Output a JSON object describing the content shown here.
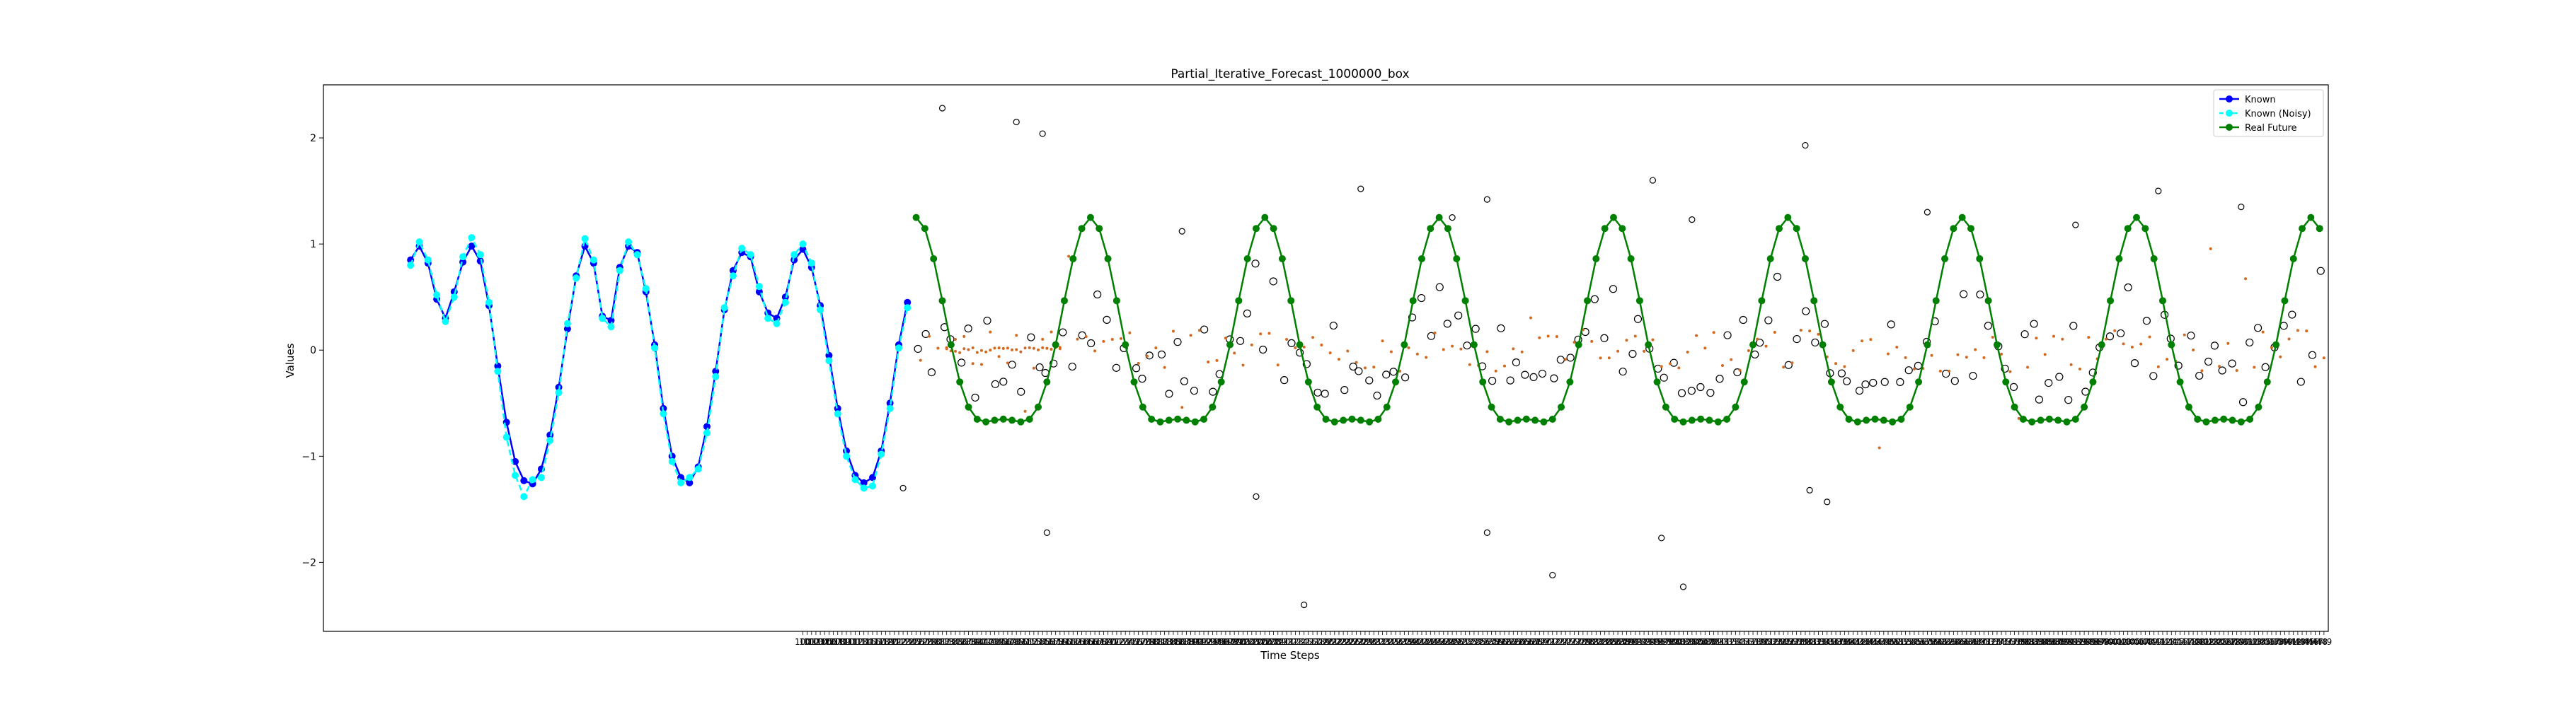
{
  "chart_data": {
    "type": "line",
    "title": "Partial_Iterative_Forecast_1000000_box",
    "xlabel": "Time Steps",
    "ylabel": "Values",
    "xlim": [
      -10,
      450
    ],
    "ylim": [
      -2.65,
      2.5
    ],
    "yticks": [
      -2,
      -1,
      0,
      1,
      2
    ],
    "ytick_labels": [
      "−2",
      "−1",
      "0",
      "1",
      "2"
    ],
    "x_tick_start": 100,
    "x_tick_end": 449,
    "legend": {
      "location": "upper right",
      "entries": [
        {
          "label": "Known",
          "color": "#0000ff",
          "marker": "circle",
          "line": "solid"
        },
        {
          "label": "Known (Noisy)",
          "color": "#00ffff",
          "marker": "circle",
          "line": "dashed"
        },
        {
          "label": "Real Future",
          "color": "#008000",
          "marker": "circle",
          "line": "solid"
        }
      ]
    },
    "series": [
      {
        "name": "Known",
        "color": "#0000ff",
        "x_start": 10,
        "x_step": 2,
        "values": [
          0.85,
          0.98,
          0.82,
          0.48,
          0.3,
          0.55,
          0.83,
          0.98,
          0.84,
          0.42,
          -0.15,
          -0.68,
          -1.05,
          -1.23,
          -1.26,
          -1.12,
          -0.8,
          -0.35,
          0.2,
          0.7,
          0.98,
          0.82,
          0.32,
          0.28,
          0.78,
          0.98,
          0.92,
          0.55,
          0.05,
          -0.55,
          -1.0,
          -1.2,
          -1.25,
          -1.1,
          -0.72,
          -0.2,
          0.38,
          0.75,
          0.92,
          0.88,
          0.55,
          0.35,
          0.3,
          0.5,
          0.85,
          0.95,
          0.78,
          0.42,
          -0.05,
          -0.55,
          -0.95,
          -1.18,
          -1.25,
          -1.2,
          -0.95,
          -0.5,
          0.05,
          0.45
        ]
      },
      {
        "name": "Known (Noisy)",
        "color": "#00ffff",
        "x_start": 10,
        "x_step": 2,
        "values": [
          0.8,
          1.02,
          0.85,
          0.52,
          0.27,
          0.5,
          0.88,
          1.06,
          0.9,
          0.45,
          -0.2,
          -0.82,
          -1.18,
          -1.38,
          -1.22,
          -1.2,
          -0.85,
          -0.4,
          0.25,
          0.68,
          1.05,
          0.85,
          0.3,
          0.22,
          0.75,
          1.02,
          0.9,
          0.58,
          0.02,
          -0.6,
          -1.05,
          -1.25,
          -1.2,
          -1.12,
          -0.78,
          -0.25,
          0.4,
          0.7,
          0.96,
          0.9,
          0.6,
          0.3,
          0.25,
          0.45,
          0.9,
          1.0,
          0.82,
          0.38,
          -0.1,
          -0.6,
          -1.0,
          -1.22,
          -1.3,
          -1.28,
          -0.98,
          -0.55,
          0.02,
          0.4
        ]
      },
      {
        "name": "Real Future",
        "color": "#008000",
        "x_start": 126,
        "x_step": 2,
        "period": 40,
        "count": 162
      }
    ],
    "forecast_points_note": "",
    "scatter_outliers": [
      {
        "x": 132,
        "y": 2.28
      },
      {
        "x": 149,
        "y": 2.15
      },
      {
        "x": 155,
        "y": 2.04
      },
      {
        "x": 187,
        "y": 1.12
      },
      {
        "x": 228,
        "y": 1.52
      },
      {
        "x": 249,
        "y": 1.25
      },
      {
        "x": 257,
        "y": 1.42
      },
      {
        "x": 295,
        "y": 1.6
      },
      {
        "x": 304,
        "y": 1.23
      },
      {
        "x": 330,
        "y": 1.93
      },
      {
        "x": 358,
        "y": 1.3
      },
      {
        "x": 392,
        "y": 1.18
      },
      {
        "x": 411,
        "y": 1.5
      },
      {
        "x": 430,
        "y": 1.35
      },
      {
        "x": 123,
        "y": -1.3
      },
      {
        "x": 156,
        "y": -1.72
      },
      {
        "x": 204,
        "y": -1.38
      },
      {
        "x": 215,
        "y": -2.4
      },
      {
        "x": 257,
        "y": -1.72
      },
      {
        "x": 272,
        "y": -2.12
      },
      {
        "x": 297,
        "y": -1.77
      },
      {
        "x": 302,
        "y": -2.23
      },
      {
        "x": 331,
        "y": -1.32
      },
      {
        "x": 335,
        "y": -1.43
      }
    ]
  }
}
